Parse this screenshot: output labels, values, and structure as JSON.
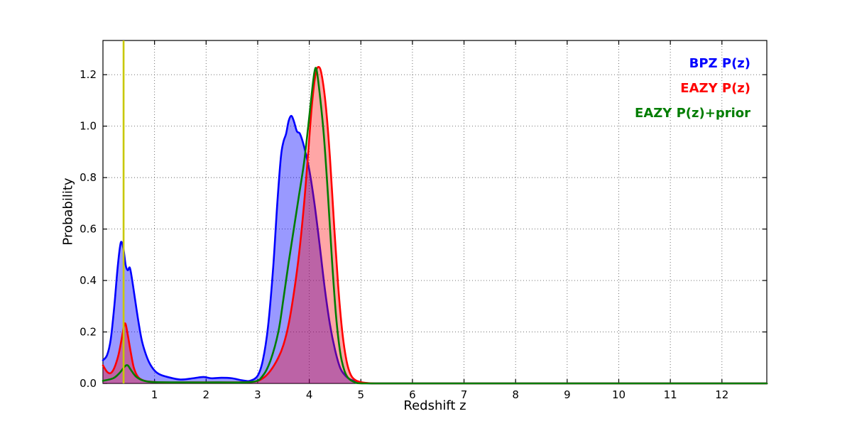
{
  "chart_data": {
    "type": "line",
    "title": "",
    "xlabel": "Redshift z",
    "ylabel": "Probability",
    "xlim": [
      0,
      12.87
    ],
    "ylim": [
      0,
      1.333
    ],
    "xticks": [
      1,
      2,
      3,
      4,
      5,
      6,
      7,
      8,
      9,
      10,
      11,
      12
    ],
    "yticks": [
      0,
      0.2,
      0.4,
      0.6,
      0.8,
      1.0,
      1.2
    ],
    "ytick_labels": [
      "0.0",
      "0.2",
      "0.4",
      "0.6",
      "0.8",
      "1.0",
      "1.2"
    ],
    "grid": true,
    "grid_style": "dotted",
    "legend_position": "upper right",
    "vline": {
      "x": 0.4,
      "color": "#c8c800"
    },
    "series": [
      {
        "name": "BPZ P(z)",
        "color": "#0000ff",
        "fill_alpha": 0.4,
        "points": [
          [
            0.0,
            0.09
          ],
          [
            0.08,
            0.11
          ],
          [
            0.15,
            0.17
          ],
          [
            0.22,
            0.3
          ],
          [
            0.28,
            0.44
          ],
          [
            0.33,
            0.53
          ],
          [
            0.36,
            0.55
          ],
          [
            0.4,
            0.52
          ],
          [
            0.44,
            0.46
          ],
          [
            0.48,
            0.44
          ],
          [
            0.52,
            0.45
          ],
          [
            0.56,
            0.41
          ],
          [
            0.62,
            0.33
          ],
          [
            0.68,
            0.25
          ],
          [
            0.75,
            0.17
          ],
          [
            0.82,
            0.12
          ],
          [
            0.9,
            0.08
          ],
          [
            1.0,
            0.05
          ],
          [
            1.1,
            0.035
          ],
          [
            1.25,
            0.025
          ],
          [
            1.5,
            0.015
          ],
          [
            1.75,
            0.02
          ],
          [
            1.95,
            0.025
          ],
          [
            2.1,
            0.02
          ],
          [
            2.3,
            0.022
          ],
          [
            2.5,
            0.02
          ],
          [
            2.7,
            0.012
          ],
          [
            2.85,
            0.01
          ],
          [
            3.0,
            0.03
          ],
          [
            3.1,
            0.09
          ],
          [
            3.2,
            0.22
          ],
          [
            3.3,
            0.45
          ],
          [
            3.38,
            0.7
          ],
          [
            3.45,
            0.88
          ],
          [
            3.5,
            0.94
          ],
          [
            3.55,
            0.97
          ],
          [
            3.6,
            1.02
          ],
          [
            3.65,
            1.04
          ],
          [
            3.7,
            1.02
          ],
          [
            3.76,
            0.98
          ],
          [
            3.82,
            0.97
          ],
          [
            3.9,
            0.92
          ],
          [
            4.0,
            0.83
          ],
          [
            4.1,
            0.7
          ],
          [
            4.2,
            0.54
          ],
          [
            4.3,
            0.37
          ],
          [
            4.4,
            0.23
          ],
          [
            4.5,
            0.13
          ],
          [
            4.6,
            0.06
          ],
          [
            4.7,
            0.03
          ],
          [
            4.8,
            0.015
          ],
          [
            4.95,
            0.005
          ],
          [
            5.2,
            0.0
          ],
          [
            6.0,
            0.0
          ],
          [
            8.0,
            0.0
          ],
          [
            10.0,
            0.0
          ],
          [
            12.87,
            0.0
          ]
        ]
      },
      {
        "name": "EAZY P(z)",
        "color": "#ff0000",
        "fill_alpha": 0.35,
        "points": [
          [
            0.0,
            0.07
          ],
          [
            0.08,
            0.045
          ],
          [
            0.15,
            0.04
          ],
          [
            0.22,
            0.06
          ],
          [
            0.3,
            0.11
          ],
          [
            0.36,
            0.17
          ],
          [
            0.41,
            0.225
          ],
          [
            0.44,
            0.23
          ],
          [
            0.48,
            0.19
          ],
          [
            0.54,
            0.12
          ],
          [
            0.6,
            0.06
          ],
          [
            0.68,
            0.025
          ],
          [
            0.78,
            0.012
          ],
          [
            0.9,
            0.007
          ],
          [
            1.2,
            0.004
          ],
          [
            1.8,
            0.004
          ],
          [
            2.4,
            0.004
          ],
          [
            2.9,
            0.006
          ],
          [
            3.1,
            0.02
          ],
          [
            3.25,
            0.05
          ],
          [
            3.4,
            0.1
          ],
          [
            3.5,
            0.15
          ],
          [
            3.6,
            0.23
          ],
          [
            3.7,
            0.35
          ],
          [
            3.8,
            0.5
          ],
          [
            3.9,
            0.7
          ],
          [
            3.98,
            0.9
          ],
          [
            4.05,
            1.08
          ],
          [
            4.12,
            1.2
          ],
          [
            4.18,
            1.23
          ],
          [
            4.24,
            1.2
          ],
          [
            4.32,
            1.08
          ],
          [
            4.4,
            0.88
          ],
          [
            4.48,
            0.62
          ],
          [
            4.56,
            0.38
          ],
          [
            4.64,
            0.2
          ],
          [
            4.72,
            0.09
          ],
          [
            4.8,
            0.035
          ],
          [
            4.9,
            0.012
          ],
          [
            5.05,
            0.003
          ],
          [
            5.3,
            0.0
          ],
          [
            6.0,
            0.0
          ],
          [
            8.0,
            0.0
          ],
          [
            10.0,
            0.0
          ],
          [
            12.87,
            0.0
          ]
        ]
      },
      {
        "name": "EAZY P(z)+prior",
        "color": "#007d00",
        "fill_alpha": 0,
        "points": [
          [
            0.0,
            0.01
          ],
          [
            0.2,
            0.02
          ],
          [
            0.32,
            0.04
          ],
          [
            0.42,
            0.065
          ],
          [
            0.48,
            0.07
          ],
          [
            0.55,
            0.05
          ],
          [
            0.65,
            0.025
          ],
          [
            0.8,
            0.01
          ],
          [
            1.0,
            0.005
          ],
          [
            1.5,
            0.004
          ],
          [
            2.2,
            0.004
          ],
          [
            2.9,
            0.006
          ],
          [
            3.1,
            0.03
          ],
          [
            3.25,
            0.09
          ],
          [
            3.4,
            0.2
          ],
          [
            3.5,
            0.33
          ],
          [
            3.6,
            0.47
          ],
          [
            3.7,
            0.6
          ],
          [
            3.8,
            0.73
          ],
          [
            3.9,
            0.86
          ],
          [
            3.98,
            1.0
          ],
          [
            4.05,
            1.13
          ],
          [
            4.1,
            1.21
          ],
          [
            4.14,
            1.22
          ],
          [
            4.2,
            1.13
          ],
          [
            4.28,
            0.97
          ],
          [
            4.36,
            0.74
          ],
          [
            4.44,
            0.48
          ],
          [
            4.52,
            0.26
          ],
          [
            4.6,
            0.12
          ],
          [
            4.68,
            0.05
          ],
          [
            4.76,
            0.02
          ],
          [
            4.88,
            0.005
          ],
          [
            5.05,
            0.0
          ],
          [
            6.0,
            0.0
          ],
          [
            8.0,
            0.0
          ],
          [
            10.0,
            0.0
          ],
          [
            12.87,
            0.0
          ]
        ]
      }
    ]
  }
}
